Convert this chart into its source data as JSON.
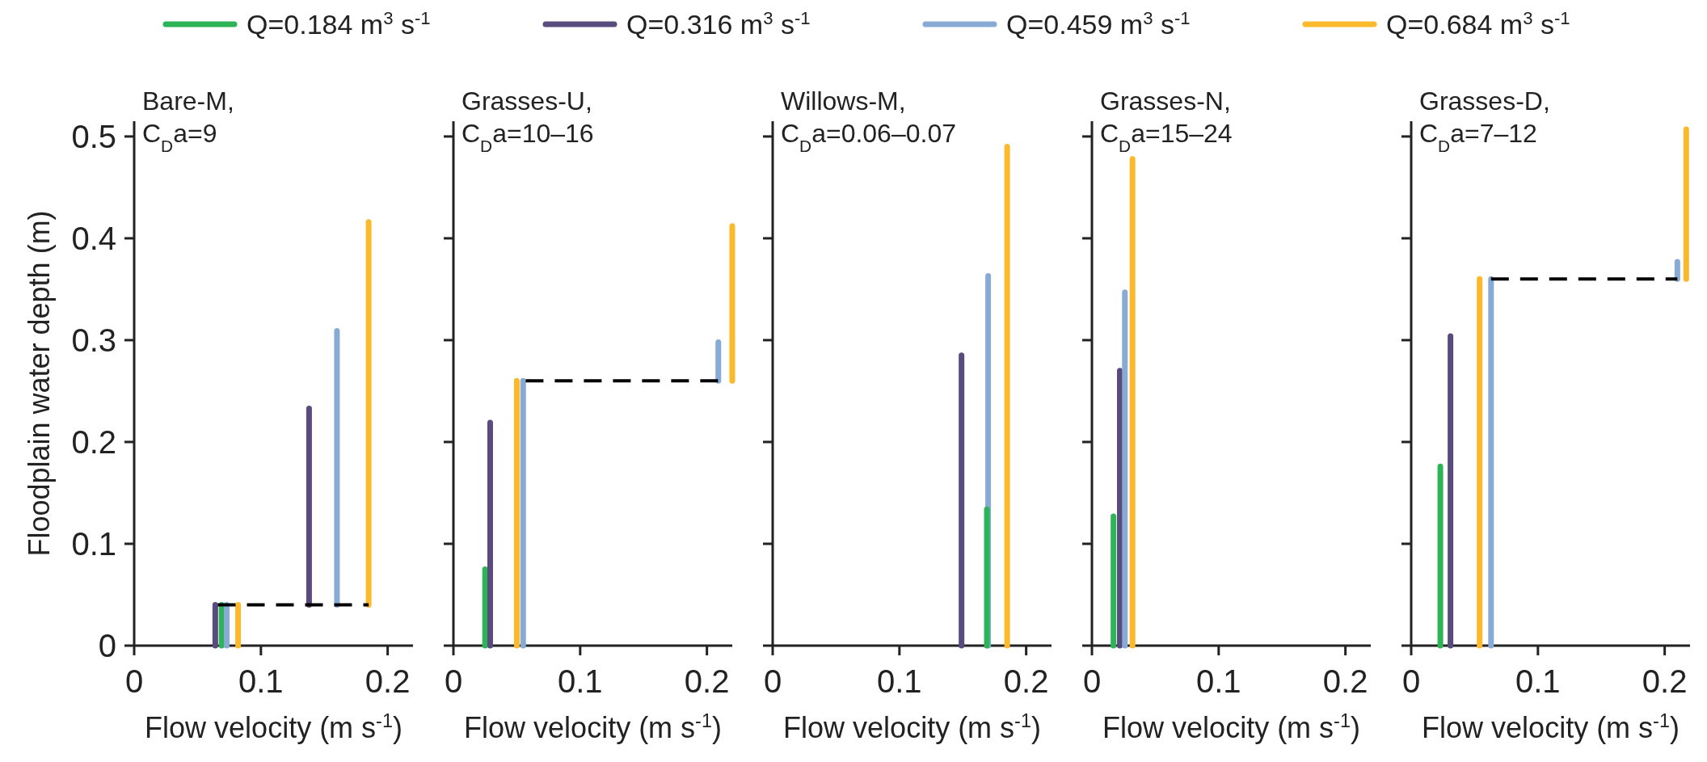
{
  "chart_data": [
    {
      "type": "line",
      "title": "Bare-M,",
      "subtitle": "C$_{D}$a=9",
      "xlabel": "Flow velocity (m s$^{-1}$)",
      "ylabel": "Floodplain water depth (m)",
      "xlim": [
        0,
        0.22
      ],
      "xticks": [
        0,
        0.1,
        0.2
      ],
      "ylim": [
        0,
        0.515
      ],
      "yticks": [
        0,
        0.1,
        0.2,
        0.3,
        0.4,
        0.5
      ],
      "legend": "top",
      "grid": false,
      "series": [
        {
          "name": "Q=0.184 m$^{3}$ s$^{-1}$",
          "color": "#2cb457",
          "x": [
            0.069,
            0.069
          ],
          "values": [
            0,
            0.04
          ]
        },
        {
          "name": "Q=0.316 m$^{3}$ s$^{-1}$",
          "color": "#5a4b7e",
          "x": [
            0.064,
            0.064
          ],
          "values": [
            0,
            0.04
          ]
        },
        {
          "name": "Q=0.459 m$^{3}$ s$^{-1}$",
          "color": "#87abd5",
          "x": [
            0.073,
            0.073
          ],
          "values": [
            0,
            0.04
          ]
        },
        {
          "name": "Q=0.684 m$^{3}$ s$^{-1}$",
          "color": "#fbb92b",
          "x": [
            0.082,
            0.082
          ],
          "values": [
            0,
            0.04
          ]
        },
        {
          "color": "#5a4b7e",
          "x": [
            0.138,
            0.138
          ],
          "values": [
            0.04,
            0.233
          ]
        },
        {
          "color": "#87abd5",
          "x": [
            0.16,
            0.16
          ],
          "values": [
            0.04,
            0.309
          ]
        },
        {
          "color": "#fbb92b",
          "x": [
            0.185,
            0.185
          ],
          "values": [
            0.04,
            0.416
          ]
        },
        {
          "color": "#000000",
          "line_style": "dashed",
          "x": [
            0.066,
            0.185
          ],
          "values": [
            0.04,
            0.04
          ]
        }
      ]
    },
    {
      "type": "line",
      "title": "Grasses-U,",
      "subtitle": "C$_{D}$a=10–16",
      "xlabel": "Flow velocity (m s$^{-1}$)",
      "xlim": [
        0,
        0.22
      ],
      "xticks": [
        0,
        0.1,
        0.2
      ],
      "ylim": [
        0,
        0.515
      ],
      "yticks": [
        0,
        0.1,
        0.2,
        0.3,
        0.4,
        0.5
      ],
      "tick_labels": "x",
      "grid": false,
      "series": [
        {
          "color": "#2cb457",
          "x": [
            0.025,
            0.025
          ],
          "values": [
            0,
            0.075
          ]
        },
        {
          "color": "#5a4b7e",
          "x": [
            0.029,
            0.029
          ],
          "values": [
            0,
            0.219
          ]
        },
        {
          "color": "#87abd5",
          "x": [
            0.055,
            0.055
          ],
          "values": [
            0,
            0.26
          ]
        },
        {
          "color": "#fbb92b",
          "x": [
            0.05,
            0.05
          ],
          "values": [
            0,
            0.26
          ]
        },
        {
          "color": "#87abd5",
          "x": [
            0.209,
            0.209
          ],
          "values": [
            0.26,
            0.298
          ]
        },
        {
          "color": "#fbb92b",
          "x": [
            0.22,
            0.22
          ],
          "values": [
            0.26,
            0.412
          ]
        },
        {
          "color": "#000000",
          "line_style": "dashed",
          "x": [
            0.057,
            0.21
          ],
          "values": [
            0.26,
            0.26
          ]
        }
      ]
    },
    {
      "type": "line",
      "title": "Willows-M,",
      "subtitle": "C$_{D}$a=0.06–0.07",
      "xlabel": "Flow velocity (m s$^{-1}$)",
      "xlim": [
        0,
        0.22
      ],
      "xticks": [
        0,
        0.1,
        0.2
      ],
      "ylim": [
        0,
        0.515
      ],
      "yticks": [
        0,
        0.1,
        0.2,
        0.3,
        0.4,
        0.5
      ],
      "tick_labels": "x",
      "grid": false,
      "series": [
        {
          "color": "#5a4b7e",
          "x": [
            0.149,
            0.149
          ],
          "values": [
            0,
            0.285
          ]
        },
        {
          "color": "#87abd5",
          "x": [
            0.17,
            0.17
          ],
          "values": [
            0,
            0.363
          ]
        },
        {
          "color": "#2cb457",
          "x": [
            0.169,
            0.169
          ],
          "values": [
            0,
            0.134
          ]
        },
        {
          "color": "#fbb92b",
          "x": [
            0.185,
            0.185
          ],
          "values": [
            0,
            0.49
          ]
        }
      ]
    },
    {
      "type": "line",
      "title": "Grasses-N,",
      "subtitle": "C$_{D}$a=15–24",
      "xlabel": "Flow velocity (m s$^{-1}$)",
      "xlim": [
        0,
        0.22
      ],
      "xticks": [
        0,
        0.1,
        0.2
      ],
      "ylim": [
        0,
        0.515
      ],
      "yticks": [
        0,
        0.1,
        0.2,
        0.3,
        0.4,
        0.5
      ],
      "tick_labels": "x",
      "grid": false,
      "series": [
        {
          "color": "#2cb457",
          "x": [
            0.017,
            0.017
          ],
          "values": [
            0,
            0.127
          ]
        },
        {
          "color": "#5a4b7e",
          "x": [
            0.022,
            0.022
          ],
          "values": [
            0,
            0.27
          ]
        },
        {
          "color": "#87abd5",
          "x": [
            0.026,
            0.026
          ],
          "values": [
            0,
            0.347
          ]
        },
        {
          "color": "#fbb92b",
          "x": [
            0.032,
            0.032
          ],
          "values": [
            0,
            0.478
          ]
        }
      ]
    },
    {
      "type": "line",
      "title": "Grasses-D,",
      "subtitle": "C$_{D}$a=7–12",
      "xlabel": "Flow velocity (m s$^{-1}$)",
      "xlim": [
        0,
        0.22
      ],
      "xticks": [
        0,
        0.1,
        0.2
      ],
      "ylim": [
        0,
        0.515
      ],
      "yticks": [
        0,
        0.1,
        0.2,
        0.3,
        0.4,
        0.5
      ],
      "tick_labels": "x",
      "grid": false,
      "series": [
        {
          "color": "#2cb457",
          "x": [
            0.023,
            0.023
          ],
          "values": [
            0,
            0.176
          ]
        },
        {
          "color": "#5a4b7e",
          "x": [
            0.031,
            0.031
          ],
          "values": [
            0,
            0.304
          ]
        },
        {
          "color": "#fbb92b",
          "x": [
            0.054,
            0.054
          ],
          "values": [
            0,
            0.36
          ]
        },
        {
          "color": "#87abd5",
          "x": [
            0.063,
            0.063
          ],
          "values": [
            0,
            0.36
          ]
        },
        {
          "color": "#fbb92b",
          "x": [
            0.217,
            0.217
          ],
          "values": [
            0.36,
            0.507
          ]
        },
        {
          "color": "#87abd5",
          "x": [
            0.21,
            0.21
          ],
          "values": [
            0.36,
            0.377
          ]
        },
        {
          "color": "#000000",
          "line_style": "dashed",
          "x": [
            0.063,
            0.21
          ],
          "values": [
            0.36,
            0.36
          ]
        }
      ]
    }
  ]
}
